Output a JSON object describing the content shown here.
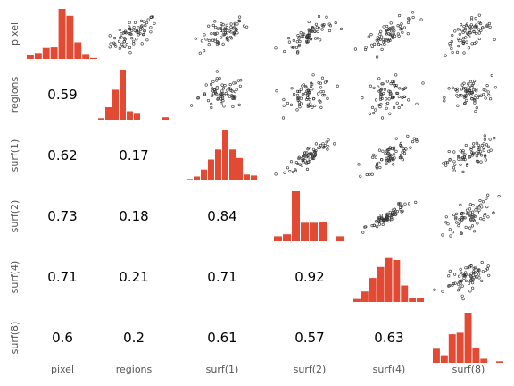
{
  "chart_data": {
    "type": "pairs",
    "variables": [
      "pixel",
      "regions",
      "surf(1)",
      "surf(2)",
      "surf(4)",
      "surf(8)"
    ],
    "correlations": [
      [
        "",
        "",
        "",
        "",
        "",
        ""
      ],
      [
        "0.59",
        "",
        "",
        "",
        "",
        ""
      ],
      [
        "0.62",
        "0.17",
        "",
        "",
        "",
        ""
      ],
      [
        "0.73",
        "0.18",
        "0.84",
        "",
        "",
        ""
      ],
      [
        "0.71",
        "0.21",
        "0.71",
        "0.92",
        "",
        ""
      ],
      [
        "0.6",
        "0.2",
        "0.61",
        "0.57",
        "0.63",
        ""
      ]
    ],
    "histograms": [
      [
        0.08,
        0.12,
        0.22,
        0.23,
        1.0,
        0.86,
        0.33,
        0.1,
        0.02
      ],
      [
        0.03,
        0.25,
        0.6,
        1.0,
        0.17,
        0.12,
        0,
        0,
        0,
        0.05
      ],
      [
        0.03,
        0.08,
        0.22,
        0.42,
        0.62,
        1.0,
        0.62,
        0.45,
        0.12,
        0.1
      ],
      [
        0.1,
        0.14,
        1.0,
        0.37,
        0.37,
        0.39,
        0,
        0.1
      ],
      [
        0.06,
        0.21,
        0.48,
        0.7,
        0.88,
        0.84,
        0.33,
        0.08,
        0.08
      ],
      [
        0.28,
        0.15,
        0.57,
        0.6,
        1.0,
        0.29,
        0.08,
        0,
        0.03
      ]
    ],
    "bar_color": "#e24a33",
    "point_color": "#333333",
    "grid": false
  }
}
